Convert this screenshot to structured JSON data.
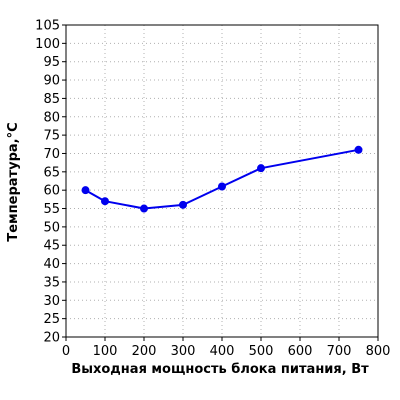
{
  "chart_data": {
    "type": "line",
    "title": "",
    "xlabel": "Выходная мощность блока питания, Вт",
    "ylabel": "Температура,°С",
    "xlim": [
      0,
      800
    ],
    "ylim": [
      20,
      105
    ],
    "x_ticks": [
      "0",
      "100",
      "200",
      "300",
      "400",
      "500",
      "600",
      "700",
      "800"
    ],
    "y_ticks": [
      "20",
      "25",
      "30",
      "35",
      "40",
      "45",
      "50",
      "55",
      "60",
      "65",
      "70",
      "75",
      "80",
      "85",
      "90",
      "95",
      "100",
      "105"
    ],
    "grid": true,
    "grid_style": "dotted",
    "legend": "none",
    "line_color": "#0000ee",
    "series": [
      {
        "x": [
          50,
          100,
          200,
          300,
          400,
          500,
          750
        ],
        "y": [
          60,
          57,
          55,
          56,
          61,
          66,
          71
        ]
      }
    ]
  }
}
